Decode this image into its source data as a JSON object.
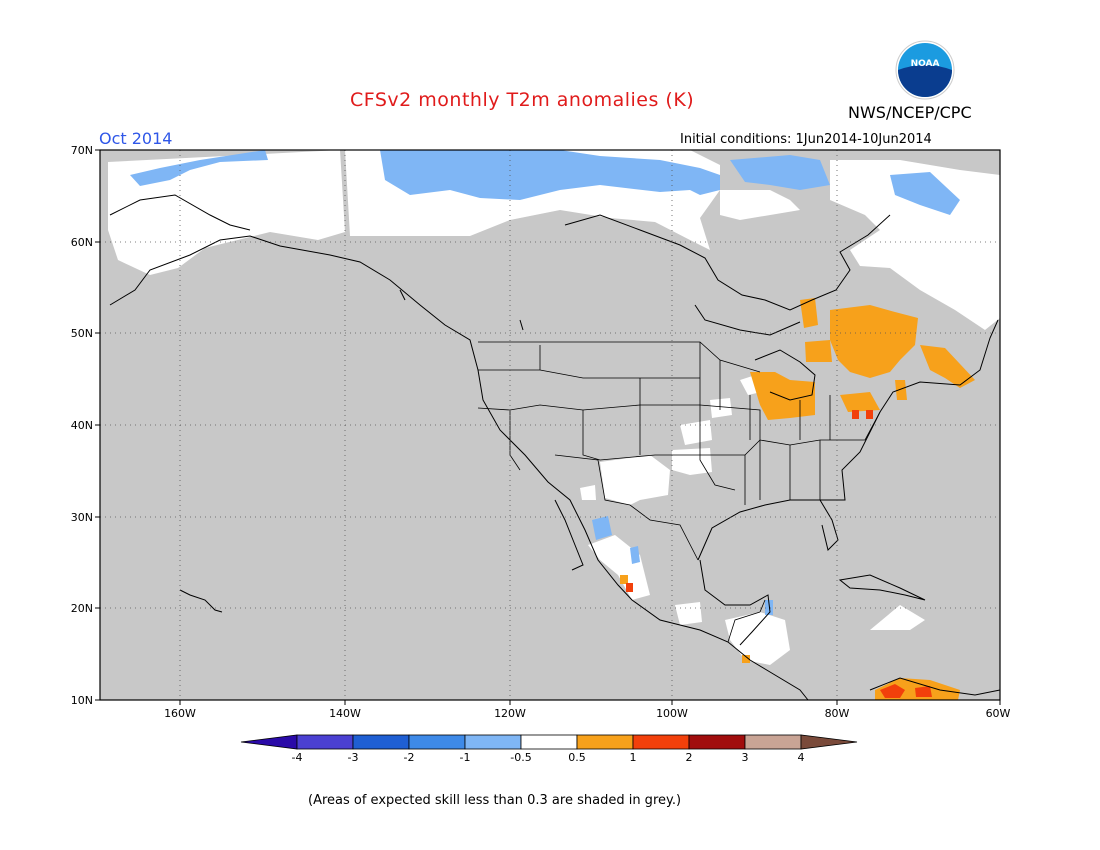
{
  "header": {
    "title": "CFSv2 monthly T2m anomalies (K)",
    "agency": "NWS/NCEP/CPC",
    "valid_month": "Oct 2014",
    "initial_conditions": "Initial conditions: 1Jun2014-10Jun2014",
    "logo_text": "NOAA"
  },
  "map": {
    "lat_labels": [
      "70N",
      "60N",
      "50N",
      "40N",
      "30N",
      "20N",
      "10N"
    ],
    "lon_labels": [
      "160W",
      "140W",
      "120W",
      "100W",
      "80W",
      "60W"
    ],
    "background_color": "#c8c8c8",
    "neutral_color": "#ffffff"
  },
  "colorbar": {
    "labels": [
      "-4",
      "-3",
      "-2",
      "-1",
      "-0.5",
      "0.5",
      "1",
      "2",
      "3",
      "4"
    ],
    "colors": [
      "#2a0aa8",
      "#4b40d2",
      "#1f5fd3",
      "#3e8ae8",
      "#7fb6f5",
      "#ffffff",
      "#f7a11b",
      "#f2400b",
      "#a10d0d",
      "#c9a495",
      "#7a4a3a"
    ]
  },
  "footnote": "(Areas of expected skill less than 0.3 are shaded in grey.)"
}
